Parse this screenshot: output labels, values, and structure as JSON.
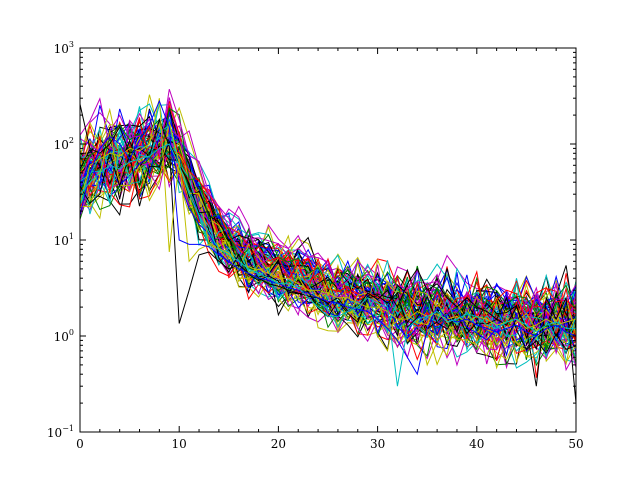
{
  "chart_data": {
    "type": "line",
    "title": "",
    "xlabel": "",
    "ylabel": "",
    "xlim": [
      0,
      50
    ],
    "ylim": [
      0.1,
      1000
    ],
    "yscale": "log",
    "grid": false,
    "legend": "none",
    "x_ticks": [
      0,
      10,
      20,
      30,
      40,
      50
    ],
    "x_tick_labels": [
      "0",
      "10",
      "20",
      "30",
      "40",
      "50"
    ],
    "y_ticks": [
      0.1,
      1,
      10,
      100,
      1000
    ],
    "y_tick_labels": [
      {
        "base": "10",
        "exp": "−1"
      },
      {
        "base": "10",
        "exp": "0"
      },
      {
        "base": "10",
        "exp": "1"
      },
      {
        "base": "10",
        "exp": "2"
      },
      {
        "base": "10",
        "exp": "3"
      }
    ],
    "series_colors": [
      "#0000ff",
      "#008000",
      "#ff0000",
      "#00bfbf",
      "#bf00bf",
      "#bfbf00",
      "#000000"
    ],
    "series_count": 84,
    "x": [
      0,
      1,
      2,
      3,
      4,
      5,
      6,
      7,
      8,
      9,
      10,
      11,
      12,
      13,
      14,
      15,
      16,
      17,
      18,
      19,
      20,
      21,
      22,
      23,
      24,
      25,
      26,
      27,
      28,
      29,
      30,
      31,
      32,
      33,
      34,
      35,
      36,
      37,
      38,
      39,
      40,
      41,
      42,
      43,
      44,
      45,
      46,
      47,
      48,
      49,
      50
    ],
    "median_profile": [
      45,
      55,
      62,
      65,
      68,
      70,
      75,
      80,
      95,
      110,
      90,
      40,
      25,
      17,
      12,
      9,
      7.5,
      6.5,
      5.8,
      5.2,
      4.8,
      4.4,
      4.0,
      3.7,
      3.3,
      3.0,
      2.8,
      2.6,
      2.5,
      2.4,
      2.3,
      2.1,
      1.9,
      1.8,
      1.8,
      1.8,
      1.7,
      1.7,
      1.7,
      1.6,
      1.6,
      1.6,
      1.5,
      1.5,
      1.5,
      1.4,
      1.4,
      1.4,
      1.4,
      1.4,
      1.4
    ],
    "notable_series": [
      {
        "color": "#000000",
        "values": [
          260,
          90,
          80,
          100,
          150,
          80,
          90,
          75,
          180,
          95,
          1.35,
          3,
          7,
          7.5,
          6,
          5,
          5.5,
          4.5,
          4,
          3.5,
          3.3,
          3,
          2.8,
          2.6,
          2.5,
          2.2,
          2.5,
          1.8,
          2,
          2.8,
          2.4,
          3,
          2,
          3.5,
          5,
          3,
          3.5,
          2.5,
          2,
          2.5,
          2,
          1.8,
          1.5,
          1.3,
          2,
          1.2,
          0.3,
          2.5,
          1.5,
          2.5,
          0.2
        ]
      },
      {
        "color": "#bfbf00",
        "values": [
          25,
          60,
          70,
          80,
          75,
          90,
          85,
          100,
          300,
          7.5,
          70,
          6,
          8,
          9,
          8,
          6,
          5,
          4.5,
          5,
          4.5,
          4,
          4,
          3.5,
          3,
          3,
          2.8,
          2.5,
          2.5,
          2.2,
          2,
          2,
          1.8,
          1.5,
          1.5,
          1.8,
          1.6,
          1.7,
          1.5,
          1.6,
          1.4,
          1.6,
          1.5,
          1.3,
          1.4,
          1.5,
          1.2,
          1.3,
          1.5,
          1.3,
          1.4,
          1.5
        ]
      },
      {
        "color": "#0000ff",
        "values": [
          18,
          50,
          90,
          120,
          100,
          70,
          110,
          160,
          280,
          150,
          10,
          9,
          9,
          8.5,
          7,
          6,
          5,
          4.5,
          4,
          3.8,
          3.5,
          3.2,
          3,
          2.8,
          2.5,
          2.3,
          2.2,
          2,
          1.9,
          1.8,
          1.5,
          1.2,
          0.9,
          0.6,
          0.4,
          1.2,
          2,
          1.5,
          1.4,
          1.5,
          1.3,
          1.2,
          1.1,
          1.2,
          1.3,
          1.1,
          1,
          1.2,
          1.3,
          1.1,
          1
        ]
      },
      {
        "color": "#00bfbf",
        "values": [
          30,
          40,
          50,
          60,
          55,
          65,
          70,
          75,
          90,
          100,
          60,
          30,
          18,
          12,
          8,
          7,
          6,
          5,
          4.5,
          4,
          3.5,
          3.5,
          3.2,
          2.5,
          2,
          1.6,
          1.6,
          1.8,
          2,
          2.5,
          2.2,
          2,
          0.3,
          1.2,
          1.5,
          1.6,
          1.8,
          1.4,
          1.5,
          1.7,
          1.6,
          1.3,
          1.2,
          1.4,
          1.5,
          1.3,
          1.1,
          1.3,
          1.4,
          1.2,
          1.2
        ]
      }
    ]
  }
}
